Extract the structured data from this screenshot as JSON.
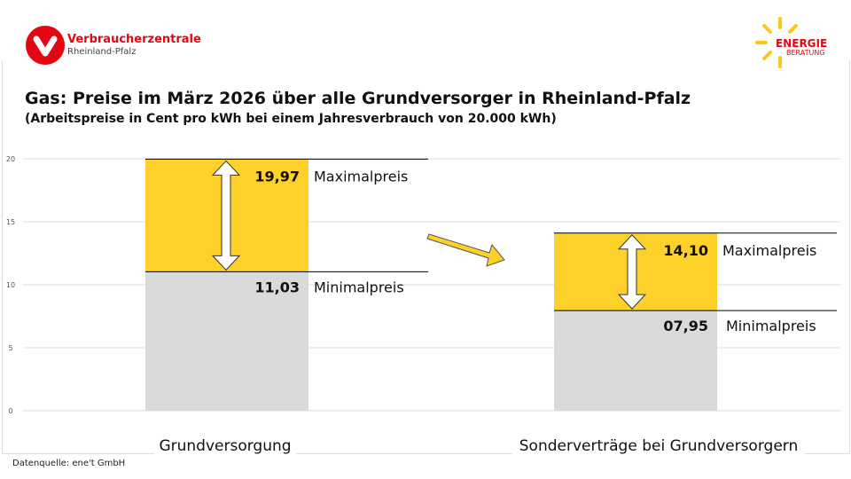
{
  "logo_left": {
    "name": "Verbraucherzentrale",
    "region": "Rheinland-Pfalz",
    "color": "#e30613"
  },
  "logo_right": {
    "line1": "ENERGIE",
    "line2": "BERATUNG"
  },
  "title": "Gas: Preise im März 2026 über alle Grundversorger in Rheinland-Pfalz",
  "subtitle": "(Arbeitspreise in Cent pro kWh bei einem Jahresverbrauch von 20.000 kWh)",
  "source": "Datenquelle: ene't GmbH",
  "chart_data": {
    "type": "bar",
    "categories": [
      "Grundversorgung",
      "Sonderverträge bei Grundversorgern"
    ],
    "series": [
      {
        "name": "Minimalpreis",
        "values": [
          11.03,
          7.95
        ],
        "labels": [
          "11,03",
          "07,95"
        ],
        "color": "#d9dadb"
      },
      {
        "name": "Maximalpreis",
        "values": [
          19.97,
          14.1
        ],
        "labels": [
          "19,97",
          "14,10"
        ],
        "color": "#fdd02a"
      }
    ],
    "ylim": [
      0,
      20
    ],
    "yticks": [
      0,
      5,
      10,
      15,
      20
    ],
    "grid": true
  }
}
